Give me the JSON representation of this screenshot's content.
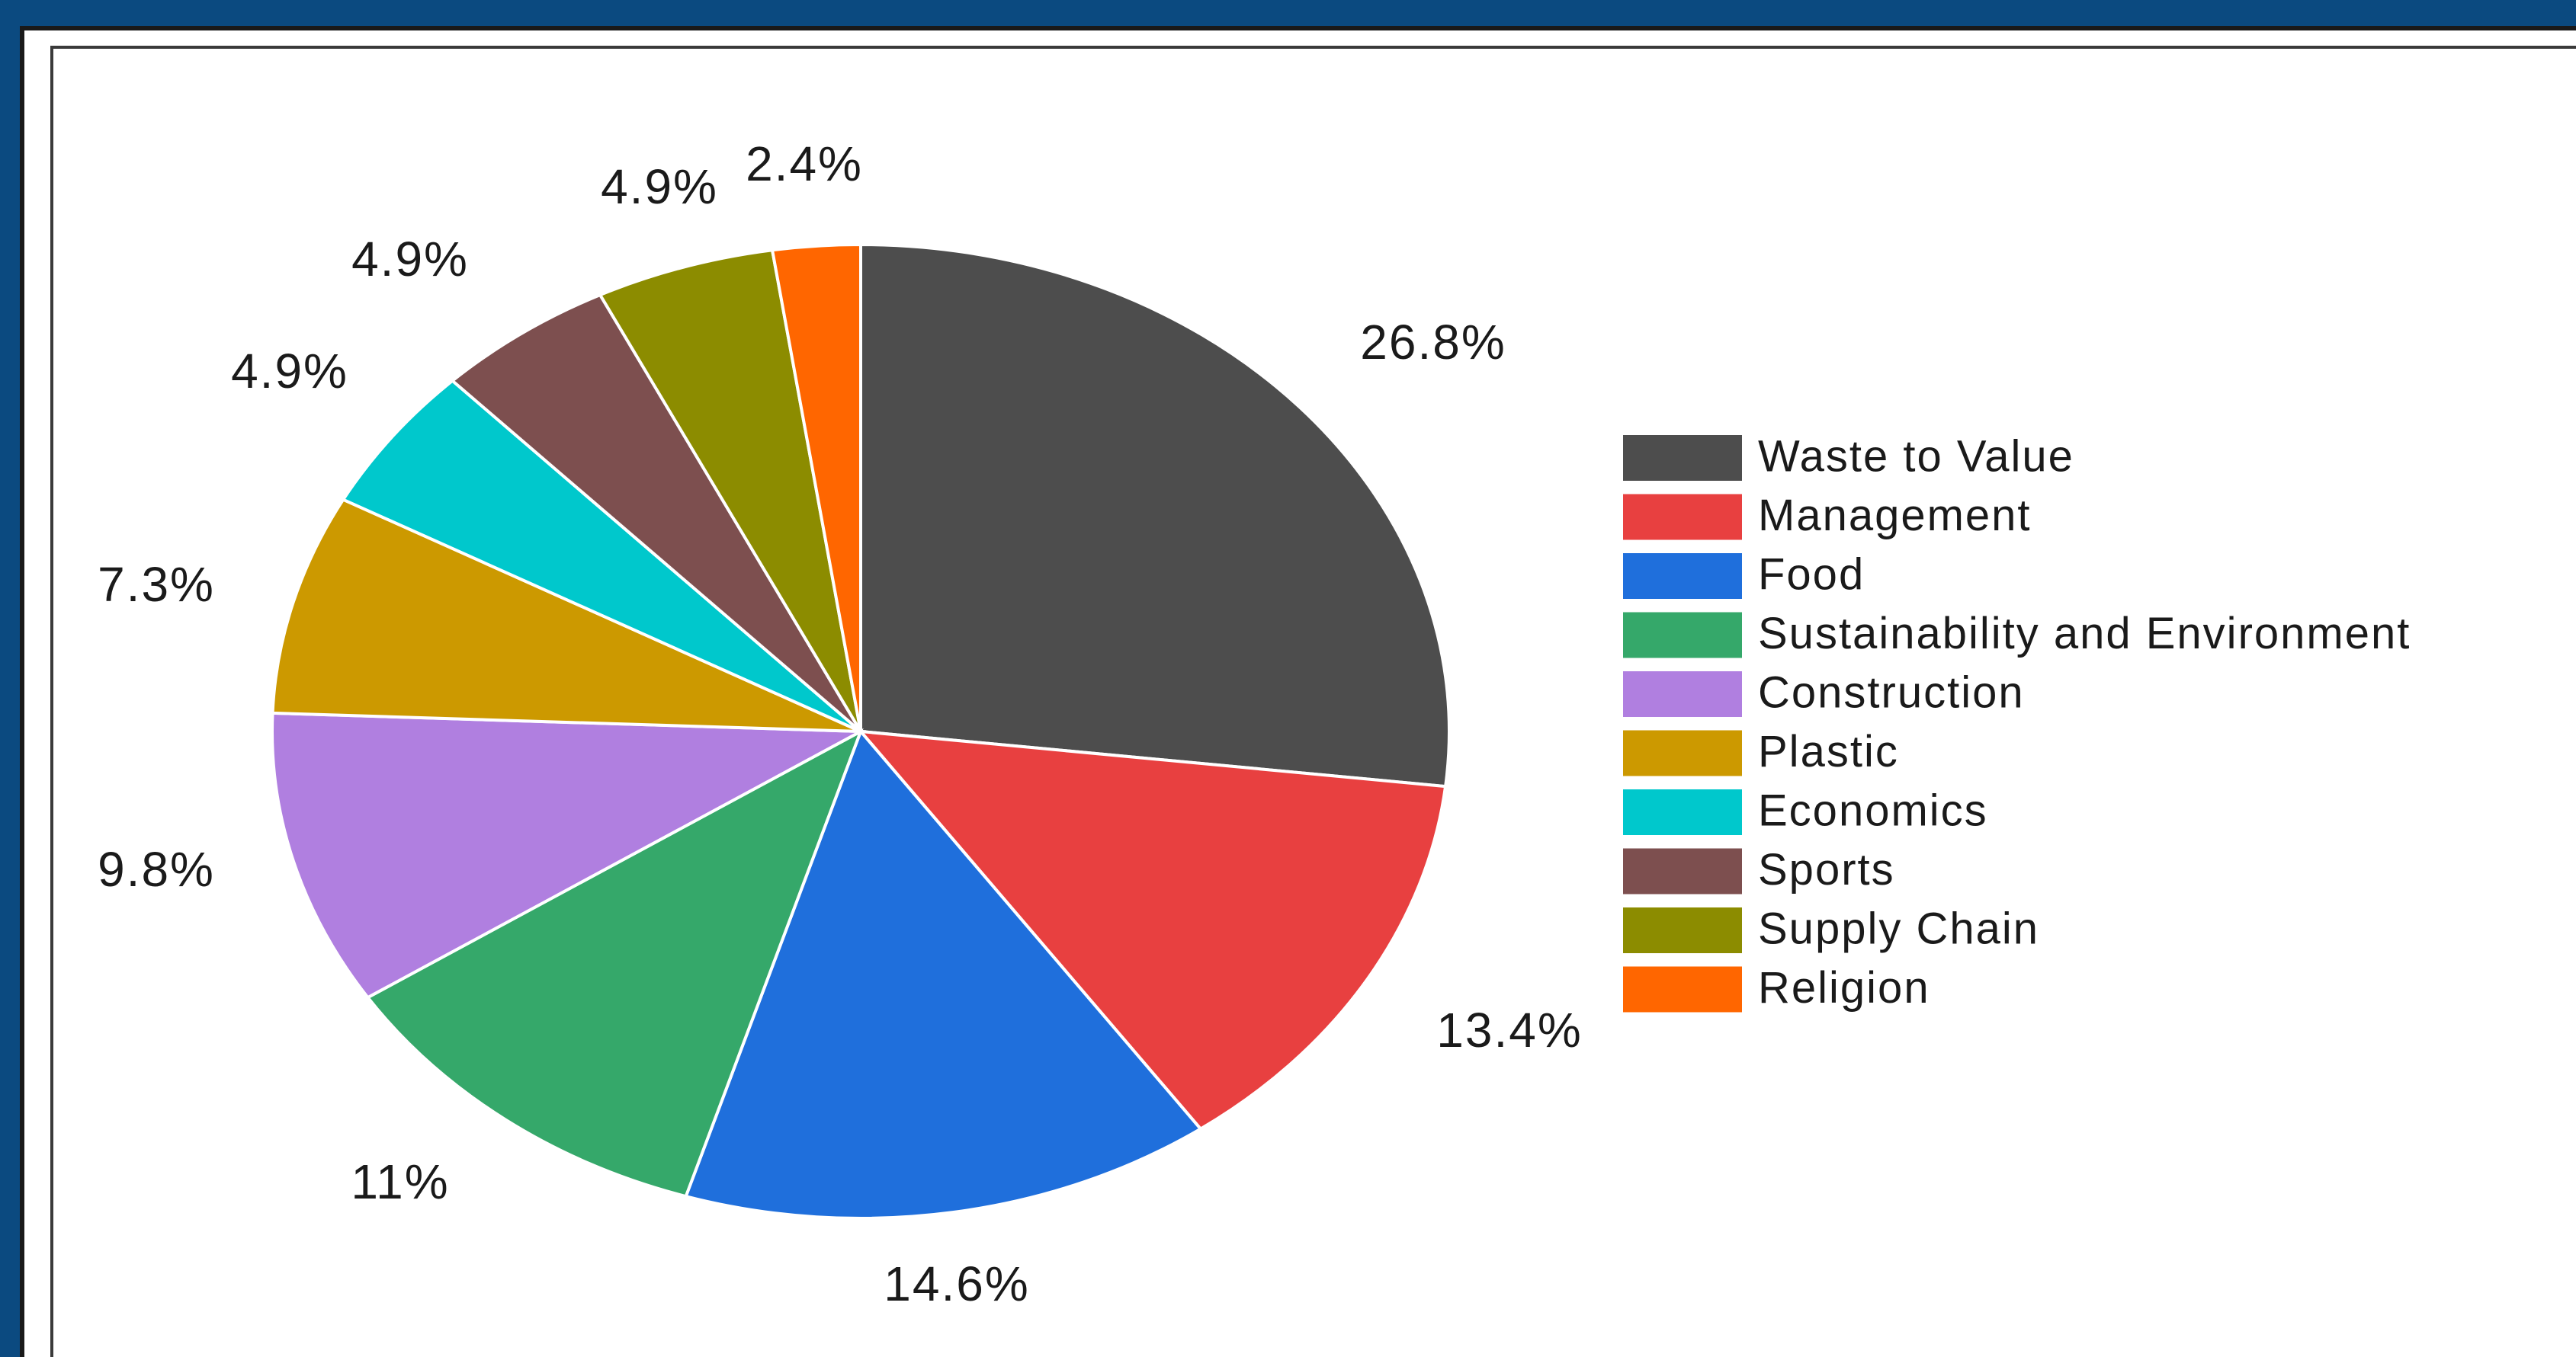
{
  "chart_data": {
    "type": "pie",
    "categories": [
      "Waste to Value",
      "Management",
      "Food",
      "Sustainability and Environment",
      "Construction",
      "Plastic",
      "Economics",
      "Sports",
      "Supply Chain",
      "Religion"
    ],
    "values": [
      26.8,
      13.4,
      14.6,
      11,
      9.8,
      7.3,
      4.9,
      4.9,
      4.9,
      2.4
    ],
    "labels": [
      "26.8%",
      "13.4%",
      "14.6%",
      "11%",
      "9.8%",
      "7.3%",
      "4.9%",
      "4.9%",
      "4.9%",
      "2.4%"
    ],
    "colors": [
      "#4d4d4d",
      "#e84040",
      "#1f6fdc",
      "#35a86a",
      "#b07fe0",
      "#cc9900",
      "#00c8cc",
      "#7d4f4f",
      "#8c8c00",
      "#ff6600"
    ],
    "start_angle": "12 o'clock",
    "direction": "clockwise",
    "legend_position": "right"
  }
}
